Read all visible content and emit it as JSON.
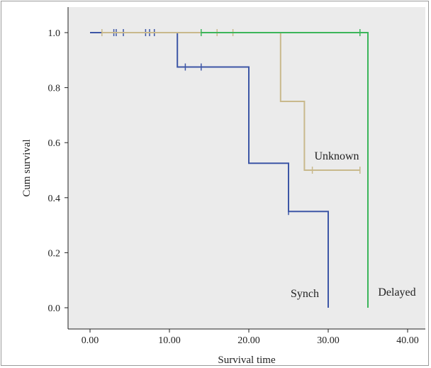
{
  "chart_data": {
    "type": "line",
    "subtype": "kaplan-meier step",
    "title": "",
    "xlabel": "Survival time",
    "ylabel": "Cum survival",
    "xlim": [
      0,
      40
    ],
    "ylim": [
      0,
      1
    ],
    "x_ticks": [
      "0.00",
      "10.00",
      "20.00",
      "30.00",
      "40.00"
    ],
    "y_ticks": [
      "0.0",
      "0.2",
      "0.4",
      "0.6",
      "0.8",
      "1.0"
    ],
    "grid": false,
    "background": "#ebebeb",
    "series": [
      {
        "name": "Synch",
        "color": "#3d56a6",
        "steps": [
          [
            0,
            1.0
          ],
          [
            11,
            0.875
          ],
          [
            20,
            0.525
          ],
          [
            25,
            0.35
          ],
          [
            30,
            0.0
          ]
        ],
        "end_x": 30,
        "censored": [
          [
            3,
            1.0
          ],
          [
            3.3,
            1.0
          ],
          [
            4.2,
            1.0
          ],
          [
            7,
            1.0
          ],
          [
            7.5,
            1.0
          ],
          [
            8.1,
            1.0
          ],
          [
            12,
            0.875
          ],
          [
            14,
            0.875
          ],
          [
            25,
            0.35
          ]
        ]
      },
      {
        "name": "Unknown",
        "color": "#c9b98c",
        "steps": [
          [
            1.5,
            1.0
          ],
          [
            24,
            0.75
          ],
          [
            27,
            0.5
          ]
        ],
        "end_x": 34,
        "censored": [
          [
            1.5,
            1.0
          ],
          [
            16,
            1.0
          ],
          [
            18,
            1.0
          ],
          [
            28,
            0.5
          ],
          [
            34,
            0.5
          ]
        ]
      },
      {
        "name": "Delayed",
        "color": "#3cb55a",
        "steps": [
          [
            14,
            1.0
          ],
          [
            35,
            0.0
          ]
        ],
        "end_x": 35,
        "censored": [
          [
            14,
            1.0
          ],
          [
            34,
            1.0
          ]
        ]
      }
    ]
  }
}
